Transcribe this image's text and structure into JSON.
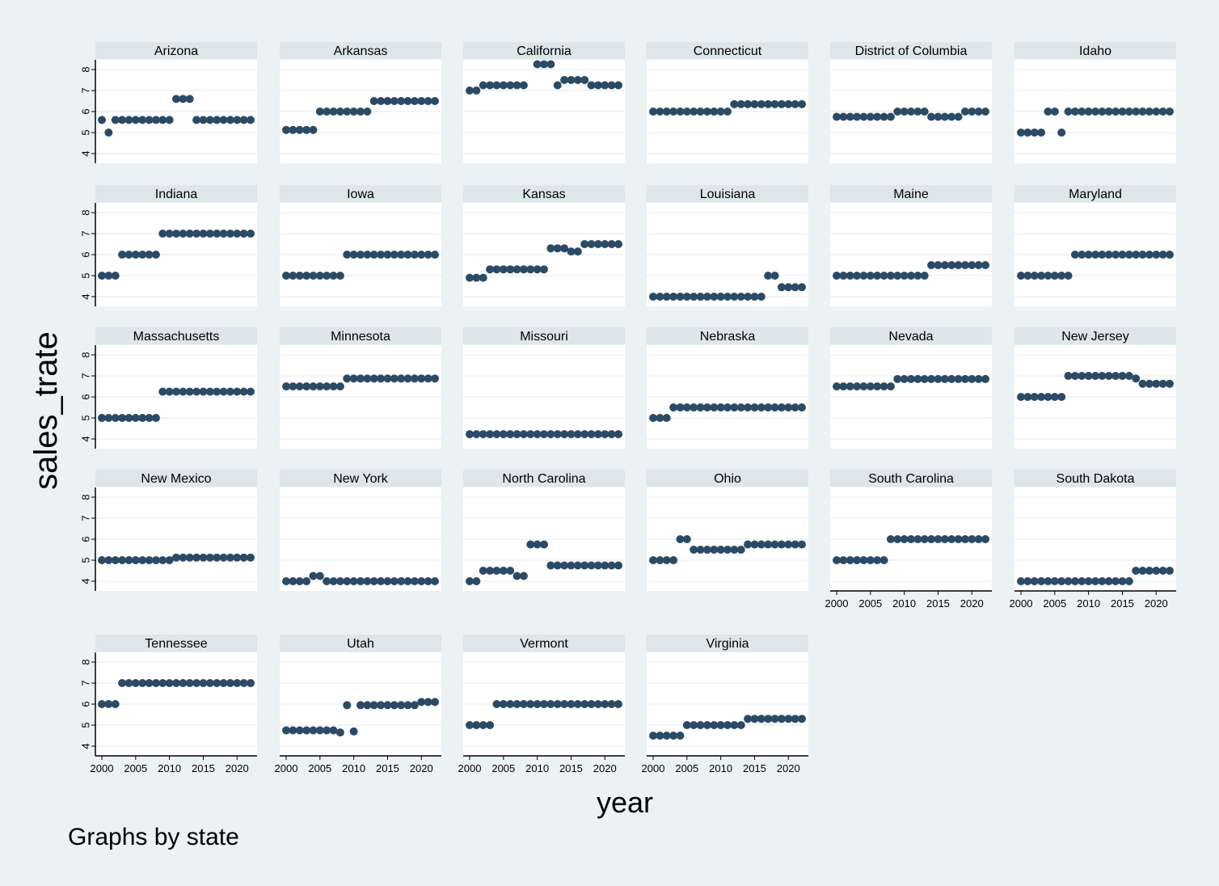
{
  "chart_data": {
    "type": "scatter",
    "ylabel": "sales_trate",
    "xlabel": "year",
    "note": "Graphs by state",
    "ylim": [
      4,
      8
    ],
    "yticks": [
      4,
      5,
      6,
      7,
      8
    ],
    "xlim": [
      2000,
      2022
    ],
    "xticks": [
      2000,
      2005,
      2010,
      2015,
      2020
    ],
    "years": [
      2000,
      2001,
      2002,
      2003,
      2004,
      2005,
      2006,
      2007,
      2008,
      2009,
      2010,
      2011,
      2012,
      2013,
      2014,
      2015,
      2016,
      2017,
      2018,
      2019,
      2020,
      2021,
      2022
    ],
    "marker_color": "#2b4a66",
    "series": [
      {
        "name": "Arizona",
        "values": [
          5.6,
          5.0,
          5.6,
          5.6,
          5.6,
          5.6,
          5.6,
          5.6,
          5.6,
          5.6,
          5.6,
          6.6,
          6.6,
          6.6,
          5.6,
          5.6,
          5.6,
          5.6,
          5.6,
          5.6,
          5.6,
          5.6,
          5.6
        ]
      },
      {
        "name": "Arkansas",
        "values": [
          5.125,
          5.125,
          5.125,
          5.125,
          5.125,
          6.0,
          6.0,
          6.0,
          6.0,
          6.0,
          6.0,
          6.0,
          6.0,
          6.5,
          6.5,
          6.5,
          6.5,
          6.5,
          6.5,
          6.5,
          6.5,
          6.5,
          6.5
        ]
      },
      {
        "name": "California",
        "values": [
          7.0,
          7.0,
          7.25,
          7.25,
          7.25,
          7.25,
          7.25,
          7.25,
          7.25,
          null,
          8.25,
          8.25,
          8.25,
          7.25,
          7.5,
          7.5,
          7.5,
          7.5,
          7.25,
          7.25,
          7.25,
          7.25,
          7.25
        ]
      },
      {
        "name": "Connecticut",
        "values": [
          6.0,
          6.0,
          6.0,
          6.0,
          6.0,
          6.0,
          6.0,
          6.0,
          6.0,
          6.0,
          6.0,
          6.0,
          6.35,
          6.35,
          6.35,
          6.35,
          6.35,
          6.35,
          6.35,
          6.35,
          6.35,
          6.35,
          6.35
        ]
      },
      {
        "name": "District of Columbia",
        "values": [
          5.75,
          5.75,
          5.75,
          5.75,
          5.75,
          5.75,
          5.75,
          5.75,
          5.75,
          6.0,
          6.0,
          6.0,
          6.0,
          6.0,
          5.75,
          5.75,
          5.75,
          5.75,
          5.75,
          6.0,
          6.0,
          6.0,
          6.0
        ]
      },
      {
        "name": "Idaho",
        "values": [
          5.0,
          5.0,
          5.0,
          5.0,
          6.0,
          6.0,
          5.0,
          6.0,
          6.0,
          6.0,
          6.0,
          6.0,
          6.0,
          6.0,
          6.0,
          6.0,
          6.0,
          6.0,
          6.0,
          6.0,
          6.0,
          6.0,
          6.0
        ]
      },
      {
        "name": "Indiana",
        "values": [
          5.0,
          5.0,
          5.0,
          6.0,
          6.0,
          6.0,
          6.0,
          6.0,
          6.0,
          7.0,
          7.0,
          7.0,
          7.0,
          7.0,
          7.0,
          7.0,
          7.0,
          7.0,
          7.0,
          7.0,
          7.0,
          7.0,
          7.0
        ]
      },
      {
        "name": "Iowa",
        "values": [
          5.0,
          5.0,
          5.0,
          5.0,
          5.0,
          5.0,
          5.0,
          5.0,
          5.0,
          6.0,
          6.0,
          6.0,
          6.0,
          6.0,
          6.0,
          6.0,
          6.0,
          6.0,
          6.0,
          6.0,
          6.0,
          6.0,
          6.0
        ]
      },
      {
        "name": "Kansas",
        "values": [
          4.9,
          4.9,
          4.9,
          5.3,
          5.3,
          5.3,
          5.3,
          5.3,
          5.3,
          5.3,
          5.3,
          5.3,
          6.3,
          6.3,
          6.3,
          6.15,
          6.15,
          6.5,
          6.5,
          6.5,
          6.5,
          6.5,
          6.5
        ]
      },
      {
        "name": "Louisiana",
        "values": [
          4.0,
          4.0,
          4.0,
          4.0,
          4.0,
          4.0,
          4.0,
          4.0,
          4.0,
          4.0,
          4.0,
          4.0,
          4.0,
          4.0,
          4.0,
          4.0,
          4.0,
          5.0,
          5.0,
          4.45,
          4.45,
          4.45,
          4.45
        ]
      },
      {
        "name": "Maine",
        "values": [
          5.0,
          5.0,
          5.0,
          5.0,
          5.0,
          5.0,
          5.0,
          5.0,
          5.0,
          5.0,
          5.0,
          5.0,
          5.0,
          5.0,
          5.5,
          5.5,
          5.5,
          5.5,
          5.5,
          5.5,
          5.5,
          5.5,
          5.5
        ]
      },
      {
        "name": "Maryland",
        "values": [
          5.0,
          5.0,
          5.0,
          5.0,
          5.0,
          5.0,
          5.0,
          5.0,
          6.0,
          6.0,
          6.0,
          6.0,
          6.0,
          6.0,
          6.0,
          6.0,
          6.0,
          6.0,
          6.0,
          6.0,
          6.0,
          6.0,
          6.0
        ]
      },
      {
        "name": "Massachusetts",
        "values": [
          5.0,
          5.0,
          5.0,
          5.0,
          5.0,
          5.0,
          5.0,
          5.0,
          5.0,
          6.25,
          6.25,
          6.25,
          6.25,
          6.25,
          6.25,
          6.25,
          6.25,
          6.25,
          6.25,
          6.25,
          6.25,
          6.25,
          6.25
        ]
      },
      {
        "name": "Minnesota",
        "values": [
          6.5,
          6.5,
          6.5,
          6.5,
          6.5,
          6.5,
          6.5,
          6.5,
          6.5,
          6.875,
          6.875,
          6.875,
          6.875,
          6.875,
          6.875,
          6.875,
          6.875,
          6.875,
          6.875,
          6.875,
          6.875,
          6.875,
          6.875
        ]
      },
      {
        "name": "Missouri",
        "values": [
          4.225,
          4.225,
          4.225,
          4.225,
          4.225,
          4.225,
          4.225,
          4.225,
          4.225,
          4.225,
          4.225,
          4.225,
          4.225,
          4.225,
          4.225,
          4.225,
          4.225,
          4.225,
          4.225,
          4.225,
          4.225,
          4.225,
          4.225
        ]
      },
      {
        "name": "Nebraska",
        "values": [
          5.0,
          5.0,
          5.0,
          5.5,
          5.5,
          5.5,
          5.5,
          5.5,
          5.5,
          5.5,
          5.5,
          5.5,
          5.5,
          5.5,
          5.5,
          5.5,
          5.5,
          5.5,
          5.5,
          5.5,
          5.5,
          5.5,
          5.5
        ]
      },
      {
        "name": "Nevada",
        "values": [
          6.5,
          6.5,
          6.5,
          6.5,
          6.5,
          6.5,
          6.5,
          6.5,
          6.5,
          6.85,
          6.85,
          6.85,
          6.85,
          6.85,
          6.85,
          6.85,
          6.85,
          6.85,
          6.85,
          6.85,
          6.85,
          6.85,
          6.85
        ]
      },
      {
        "name": "New Jersey",
        "values": [
          6.0,
          6.0,
          6.0,
          6.0,
          6.0,
          6.0,
          6.0,
          7.0,
          7.0,
          7.0,
          7.0,
          7.0,
          7.0,
          7.0,
          7.0,
          7.0,
          7.0,
          6.875,
          6.625,
          6.625,
          6.625,
          6.625,
          6.625
        ]
      },
      {
        "name": "New Mexico",
        "values": [
          5.0,
          5.0,
          5.0,
          5.0,
          5.0,
          5.0,
          5.0,
          5.0,
          5.0,
          5.0,
          5.0,
          5.125,
          5.125,
          5.125,
          5.125,
          5.125,
          5.125,
          5.125,
          5.125,
          5.125,
          5.125,
          5.125,
          5.125
        ]
      },
      {
        "name": "New York",
        "values": [
          4.0,
          4.0,
          4.0,
          4.0,
          4.25,
          4.25,
          4.0,
          4.0,
          4.0,
          4.0,
          4.0,
          4.0,
          4.0,
          4.0,
          4.0,
          4.0,
          4.0,
          4.0,
          4.0,
          4.0,
          4.0,
          4.0,
          4.0
        ]
      },
      {
        "name": "North Carolina",
        "values": [
          4.0,
          4.0,
          4.5,
          4.5,
          4.5,
          4.5,
          4.5,
          4.25,
          4.25,
          5.75,
          5.75,
          5.75,
          4.75,
          4.75,
          4.75,
          4.75,
          4.75,
          4.75,
          4.75,
          4.75,
          4.75,
          4.75,
          4.75
        ]
      },
      {
        "name": "Ohio",
        "values": [
          5.0,
          5.0,
          5.0,
          5.0,
          6.0,
          6.0,
          5.5,
          5.5,
          5.5,
          5.5,
          5.5,
          5.5,
          5.5,
          5.5,
          5.75,
          5.75,
          5.75,
          5.75,
          5.75,
          5.75,
          5.75,
          5.75,
          5.75
        ]
      },
      {
        "name": "South Carolina",
        "values": [
          5.0,
          5.0,
          5.0,
          5.0,
          5.0,
          5.0,
          5.0,
          5.0,
          6.0,
          6.0,
          6.0,
          6.0,
          6.0,
          6.0,
          6.0,
          6.0,
          6.0,
          6.0,
          6.0,
          6.0,
          6.0,
          6.0,
          6.0
        ]
      },
      {
        "name": "South Dakota",
        "values": [
          4.0,
          4.0,
          4.0,
          4.0,
          4.0,
          4.0,
          4.0,
          4.0,
          4.0,
          4.0,
          4.0,
          4.0,
          4.0,
          4.0,
          4.0,
          4.0,
          4.0,
          4.5,
          4.5,
          4.5,
          4.5,
          4.5,
          4.5
        ]
      },
      {
        "name": "Tennessee",
        "values": [
          6.0,
          6.0,
          6.0,
          7.0,
          7.0,
          7.0,
          7.0,
          7.0,
          7.0,
          7.0,
          7.0,
          7.0,
          7.0,
          7.0,
          7.0,
          7.0,
          7.0,
          7.0,
          7.0,
          7.0,
          7.0,
          7.0,
          7.0
        ]
      },
      {
        "name": "Utah",
        "values": [
          4.75,
          4.75,
          4.75,
          4.75,
          4.75,
          4.75,
          4.75,
          4.75,
          4.65,
          5.95,
          4.7,
          5.95,
          5.95,
          5.95,
          5.95,
          5.95,
          5.95,
          5.95,
          5.95,
          5.95,
          6.1,
          6.1,
          6.1
        ]
      },
      {
        "name": "Vermont",
        "values": [
          5.0,
          5.0,
          5.0,
          5.0,
          6.0,
          6.0,
          6.0,
          6.0,
          6.0,
          6.0,
          6.0,
          6.0,
          6.0,
          6.0,
          6.0,
          6.0,
          6.0,
          6.0,
          6.0,
          6.0,
          6.0,
          6.0,
          6.0
        ]
      },
      {
        "name": "Virginia",
        "values": [
          4.5,
          4.5,
          4.5,
          4.5,
          4.5,
          5.0,
          5.0,
          5.0,
          5.0,
          5.0,
          5.0,
          5.0,
          5.0,
          5.0,
          5.3,
          5.3,
          5.3,
          5.3,
          5.3,
          5.3,
          5.3,
          5.3,
          5.3
        ]
      }
    ]
  }
}
